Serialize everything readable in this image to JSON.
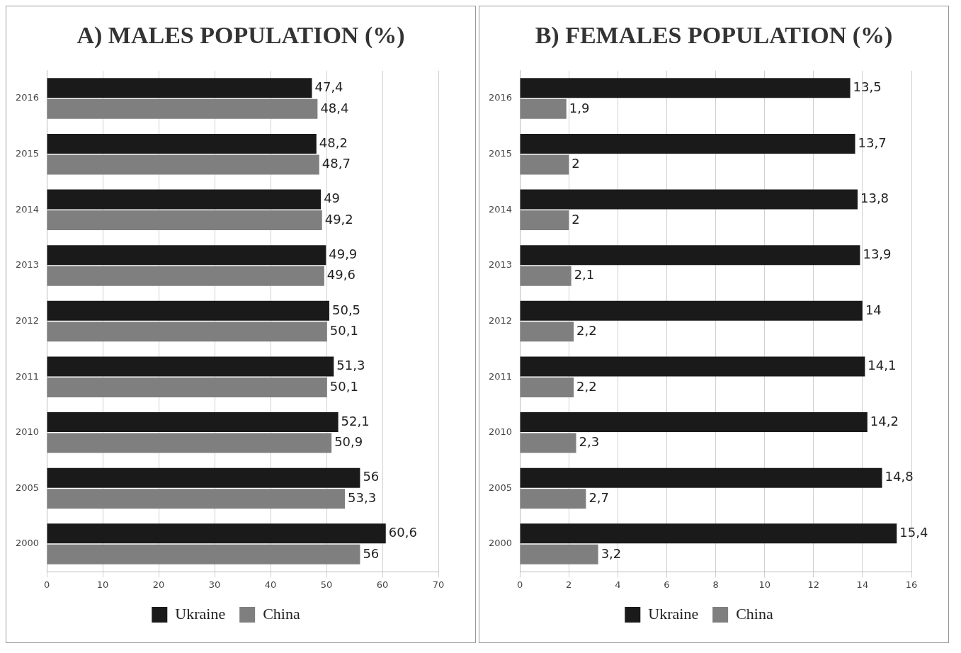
{
  "chart_data": [
    {
      "type": "bar",
      "orientation": "horizontal",
      "title": "A)  MALES POPULATION (%)",
      "categories": [
        "2016",
        "2015",
        "2014",
        "2013",
        "2012",
        "2011",
        "2010",
        "2005",
        "2000"
      ],
      "xlim": [
        0,
        70
      ],
      "xticks": [
        0,
        10,
        20,
        30,
        40,
        50,
        60,
        70
      ],
      "grid": "x",
      "legend": "bottom",
      "series": [
        {
          "name": "Ukraine",
          "color": "#1a1a1a",
          "values": [
            47.4,
            48.2,
            49,
            49.9,
            50.5,
            51.3,
            52.1,
            56,
            60.6
          ],
          "value_labels": [
            "47,4",
            "48,2",
            "49",
            "49,9",
            "50,5",
            "51,3",
            "52,1",
            "56",
            "60,6"
          ]
        },
        {
          "name": "China",
          "color": "#7f7f7f",
          "values": [
            48.4,
            48.7,
            49.2,
            49.6,
            50.1,
            50.1,
            50.9,
            53.3,
            56
          ],
          "value_labels": [
            "48,4",
            "48,7",
            "49,2",
            "49,6",
            "50,1",
            "50,1",
            "50,9",
            "53,3",
            "56"
          ]
        }
      ]
    },
    {
      "type": "bar",
      "orientation": "horizontal",
      "title": "B)  FEMALES POPULATION (%)",
      "categories": [
        "2016",
        "2015",
        "2014",
        "2013",
        "2012",
        "2011",
        "2010",
        "2005",
        "2000"
      ],
      "xlim": [
        0,
        16
      ],
      "xticks": [
        0,
        2,
        4,
        6,
        8,
        10,
        12,
        14,
        16
      ],
      "grid": "x",
      "legend": "bottom",
      "series": [
        {
          "name": "Ukraine",
          "color": "#1a1a1a",
          "values": [
            13.5,
            13.7,
            13.8,
            13.9,
            14,
            14.1,
            14.2,
            14.8,
            15.4
          ],
          "value_labels": [
            "13,5",
            "13,7",
            "13,8",
            "13,9",
            "14",
            "14,1",
            "14,2",
            "14,8",
            "15,4"
          ]
        },
        {
          "name": "China",
          "color": "#7f7f7f",
          "values": [
            1.9,
            2,
            2,
            2.1,
            2.2,
            2.2,
            2.3,
            2.7,
            3.2
          ],
          "value_labels": [
            "1,9",
            "2",
            "2",
            "2,1",
            "2,2",
            "2,2",
            "2,3",
            "2,7",
            "3,2"
          ]
        }
      ]
    }
  ]
}
